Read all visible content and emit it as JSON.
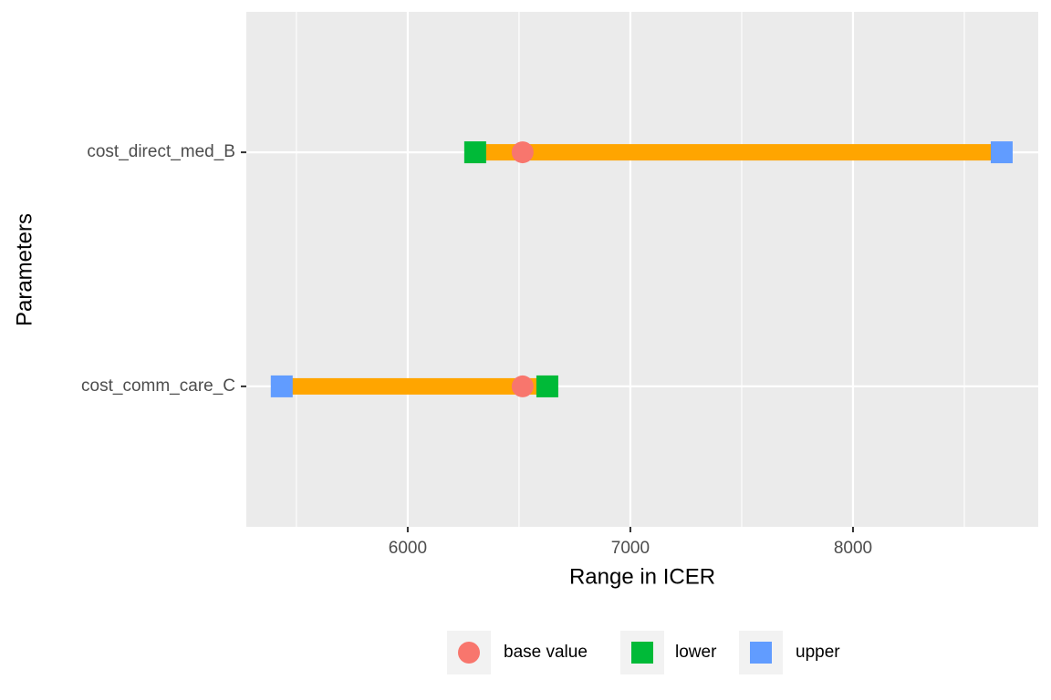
{
  "chart_data": {
    "type": "range",
    "xlabel": "Range in ICER",
    "ylabel": "Parameters",
    "categories": [
      "cost_comm_care_C",
      "cost_direct_med_B"
    ],
    "series": [
      {
        "name": "base value",
        "color": "#f8766d",
        "shape": "circle",
        "values": [
          6516,
          6516
        ]
      },
      {
        "name": "lower",
        "color": "#00ba38",
        "shape": "square",
        "values": [
          6627,
          6303
        ]
      },
      {
        "name": "upper",
        "color": "#619cff",
        "shape": "square",
        "values": [
          5434,
          8668
        ]
      }
    ],
    "bar_color": "#ffa500",
    "xlim": [
      5275,
      8832
    ],
    "xticks": [
      6000,
      7000,
      8000
    ],
    "xminor": [
      5500,
      6500,
      7500,
      8500
    ],
    "grid": true,
    "legend": "bottom"
  }
}
